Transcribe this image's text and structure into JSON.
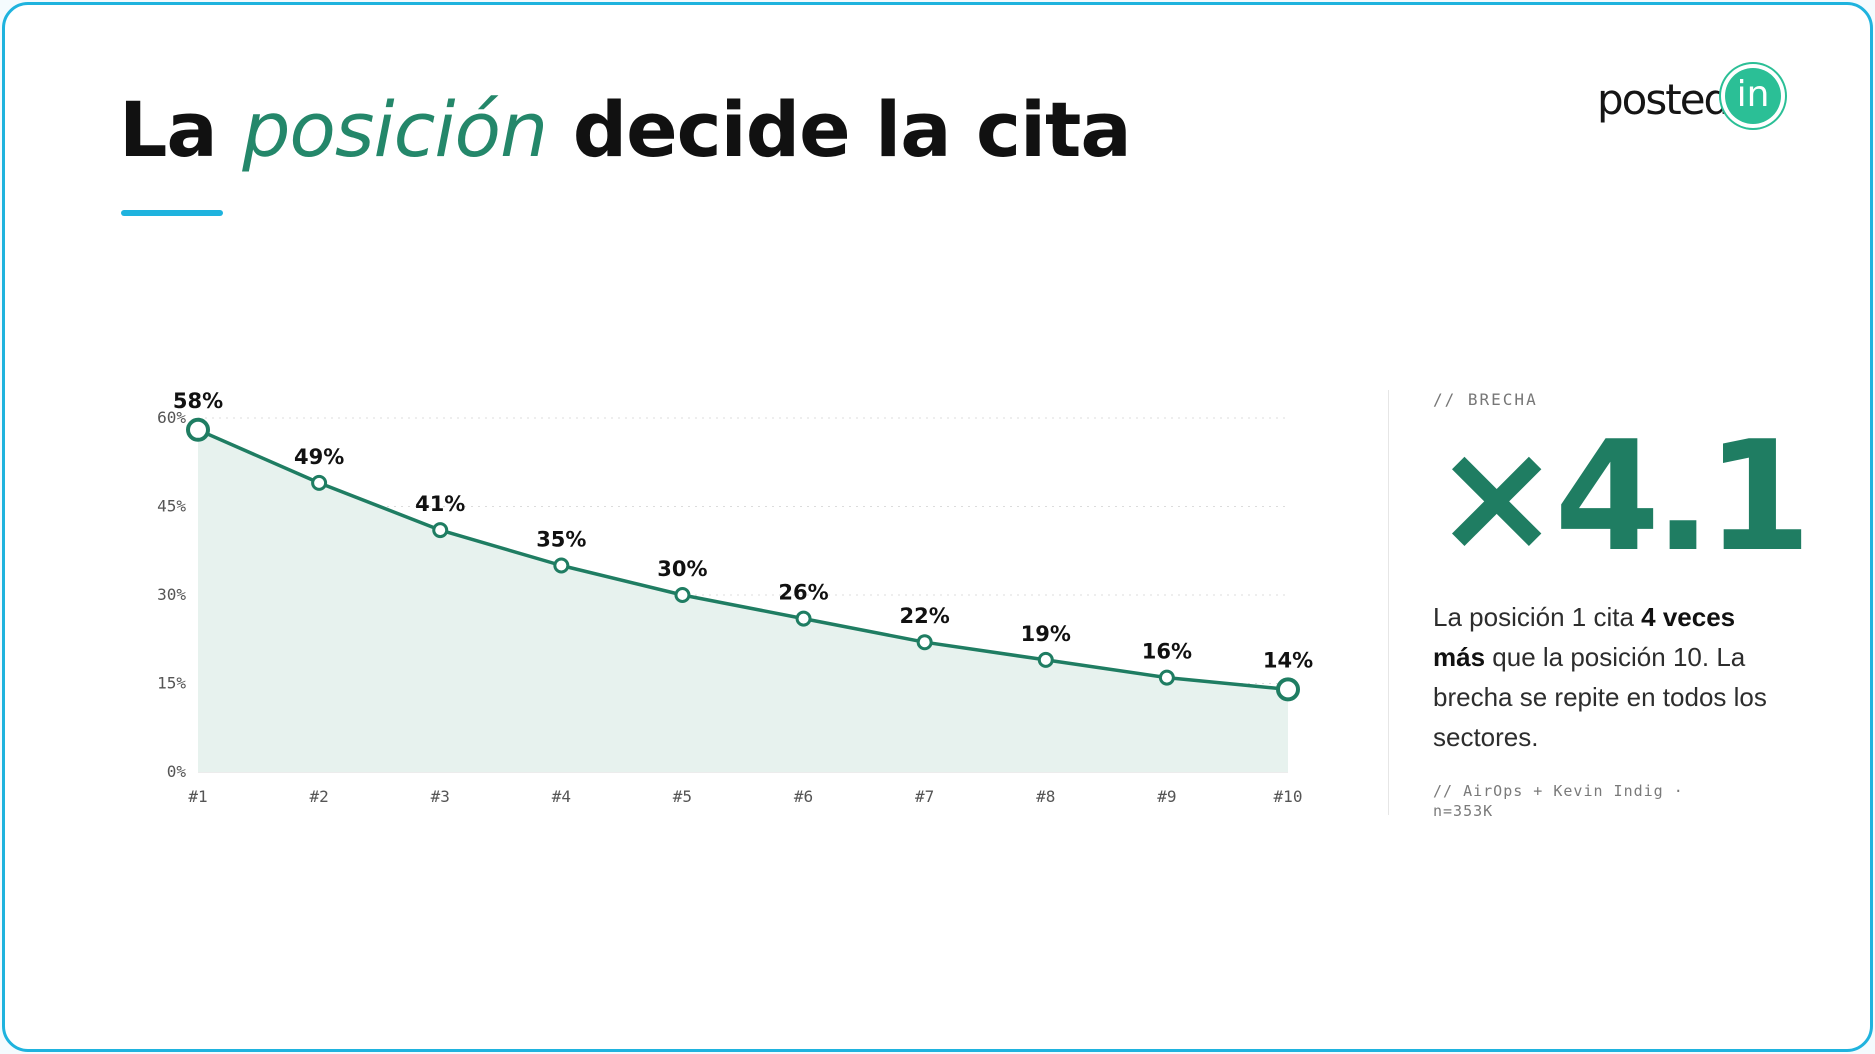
{
  "title": {
    "before": "La",
    "accent": "posición",
    "after": "decide la cita"
  },
  "logo": {
    "word": "posted",
    "badge": "in"
  },
  "chart_data": {
    "type": "area",
    "x": [
      "#1",
      "#2",
      "#3",
      "#4",
      "#5",
      "#6",
      "#7",
      "#8",
      "#9",
      "#10"
    ],
    "values": [
      58,
      49,
      41,
      35,
      30,
      26,
      22,
      19,
      16,
      14
    ],
    "data_labels": [
      "58%",
      "49%",
      "41%",
      "35%",
      "30%",
      "26%",
      "22%",
      "19%",
      "16%",
      "14%"
    ],
    "y_ticks": [
      0,
      15,
      30,
      45,
      60
    ],
    "y_tick_labels": [
      "0%",
      "15%",
      "30%",
      "45%",
      "60%"
    ],
    "ylim": [
      0,
      60
    ],
    "grid": "horizontal dotted",
    "line_color": "#1f7d62",
    "fill_color": "#e7f2ee"
  },
  "side": {
    "label": "// BRECHA",
    "big_number": "×4.1",
    "text_1": "La posición 1 cita ",
    "text_bold": "4 veces más",
    "text_2": " que la posición 10. La brecha se repite en todos los sectores.",
    "source": "// AirOps + Kevin Indig · n=353K"
  },
  "colors": {
    "accent_green": "#24876a",
    "border_blue": "#1fb3de",
    "logo_badge": "#2bbf96"
  }
}
